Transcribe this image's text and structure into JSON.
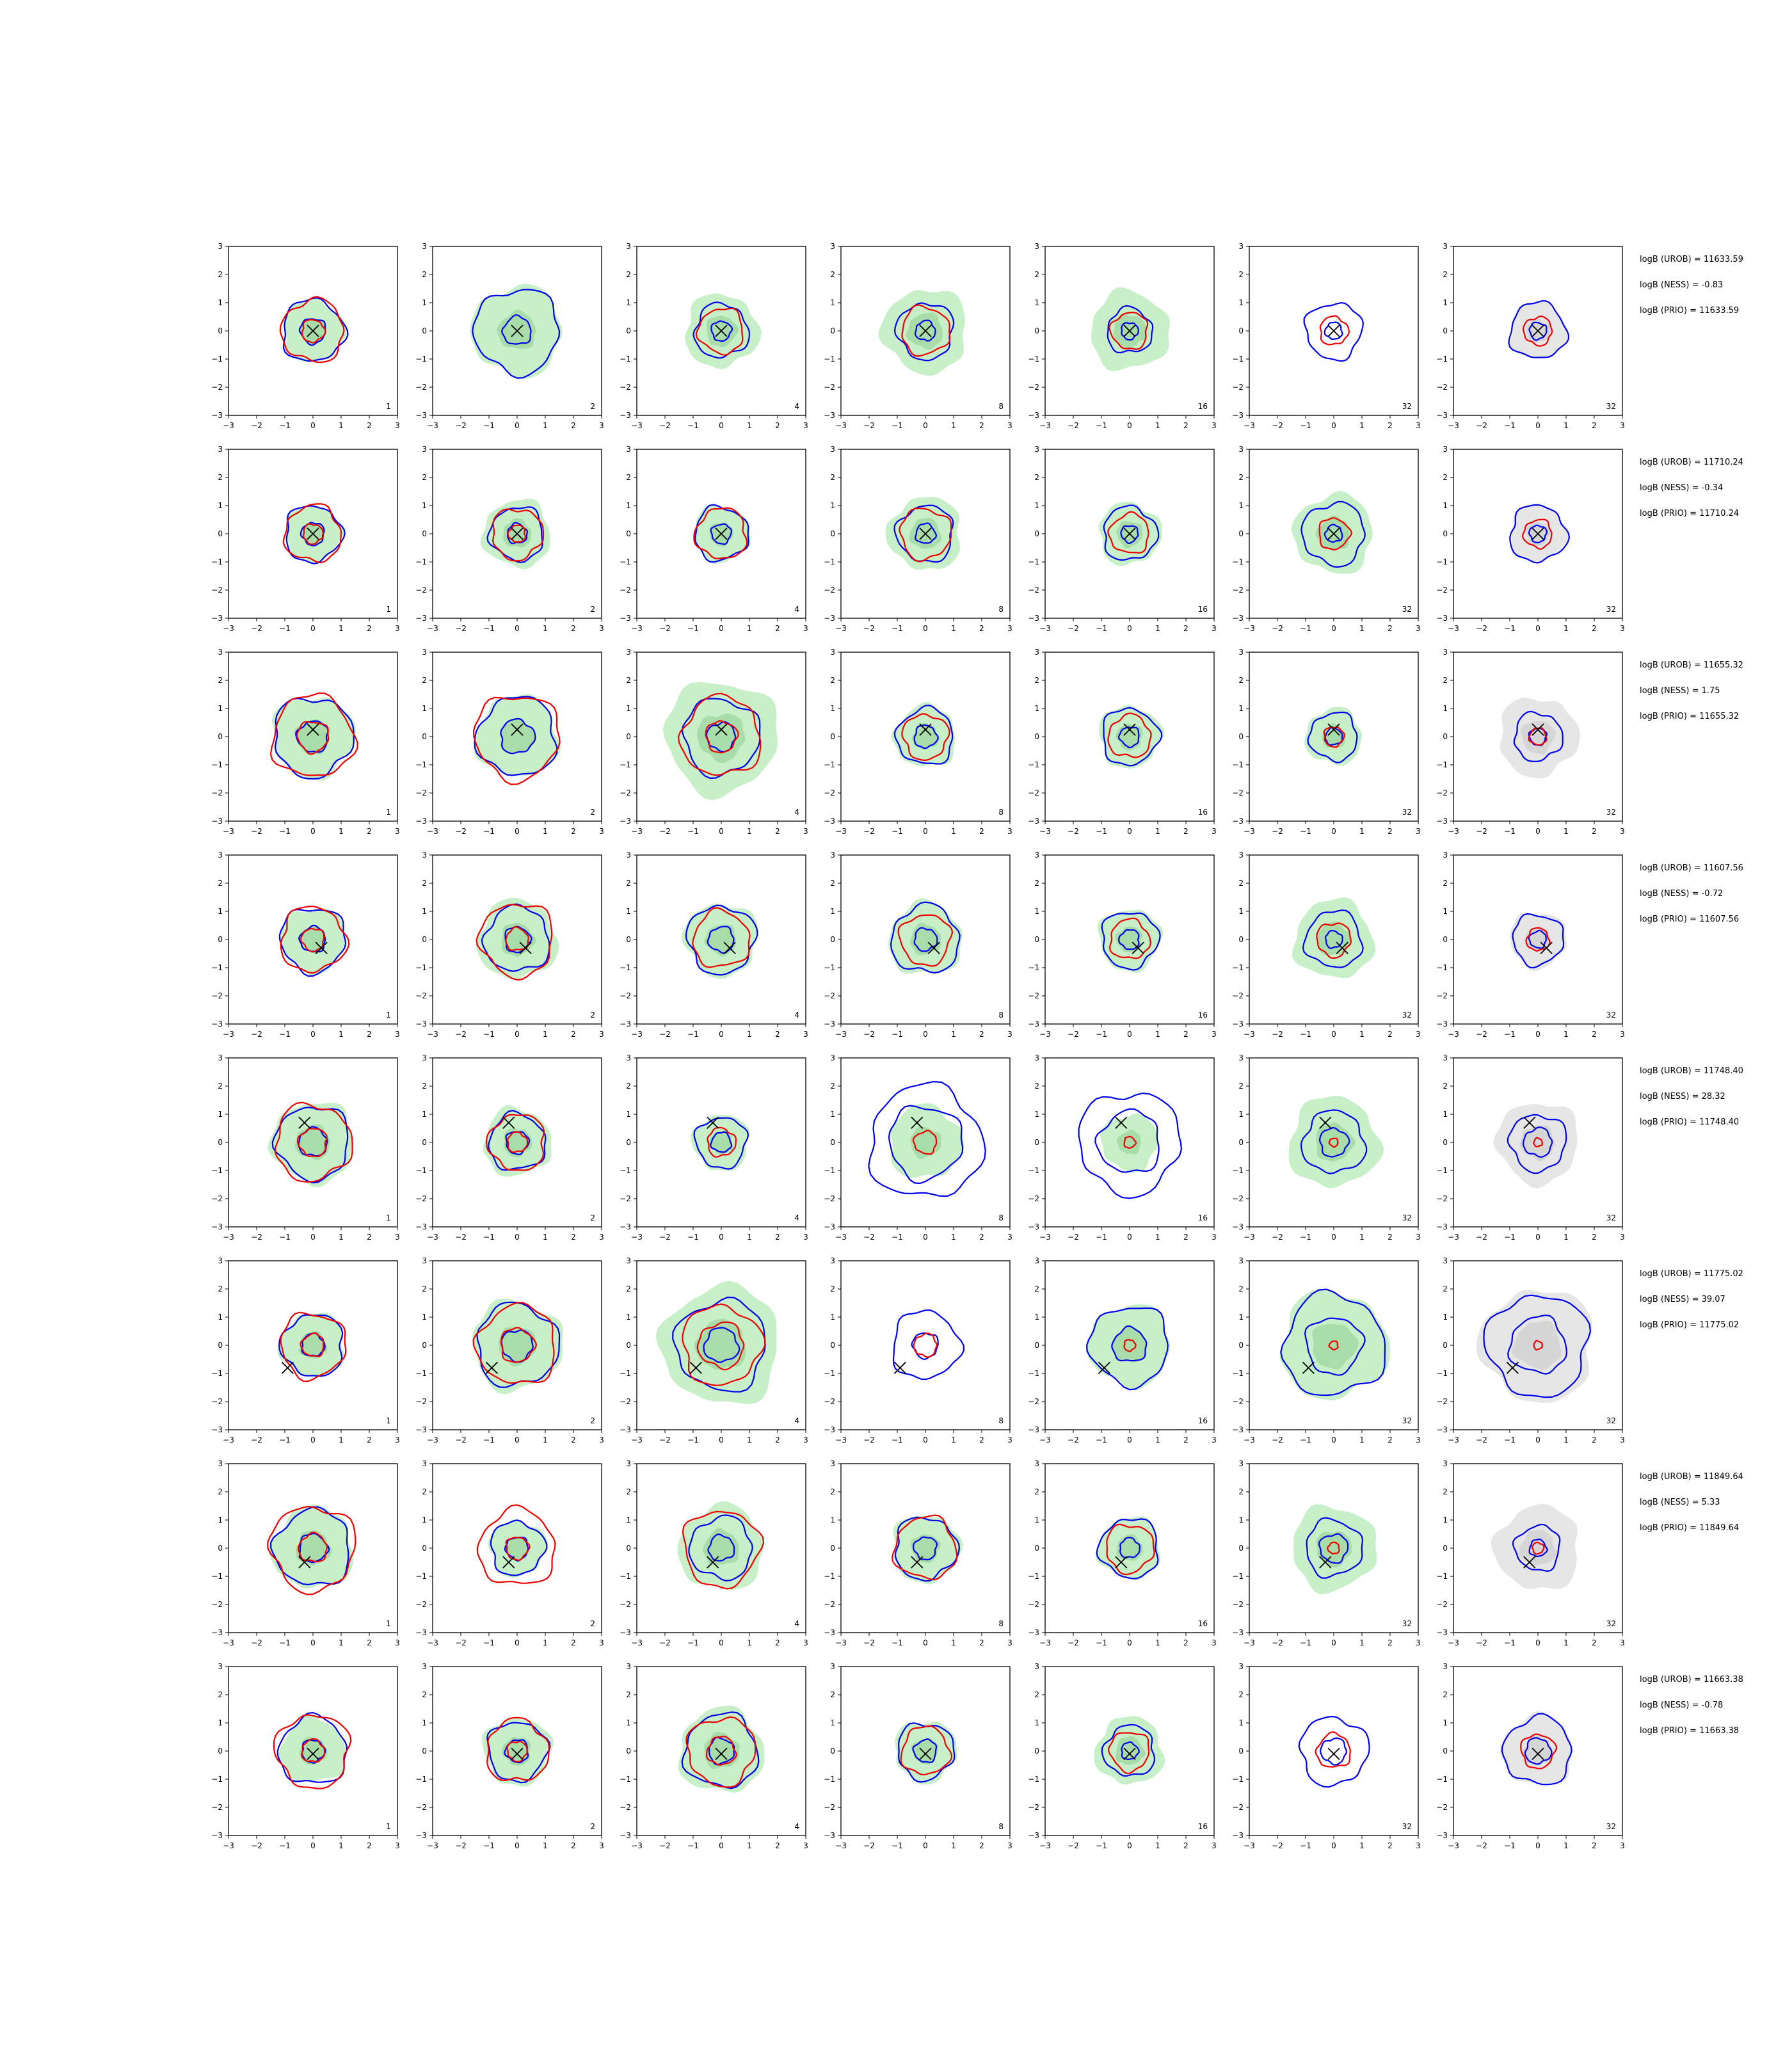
{
  "figure": {
    "background": "#ffffff",
    "colors": {
      "inner_fill": "#c8f0c8",
      "inner_fill_dark": "#a8dca8",
      "prior_fill": "#e6e6e6",
      "prior_fill_dark": "#d6d6d6",
      "contour_blue": "#0000ee",
      "contour_red": "#ee0000",
      "marker": "#000000"
    }
  },
  "chart_data": {
    "type": "contour-grid",
    "xlim": [
      -3,
      3
    ],
    "ylim": [
      -3,
      3
    ],
    "xticks": [
      "−3",
      "−2",
      "−1",
      "0",
      "1",
      "2",
      "3"
    ],
    "yticks": [
      "3",
      "2",
      "1",
      "0",
      "−1",
      "−2",
      "−3"
    ],
    "panel_labels": [
      "1",
      "2",
      "4",
      "8",
      "16",
      "32",
      "32"
    ],
    "grid": false,
    "legend": "none",
    "rows": [
      {
        "truth": [
          0.0,
          0.0
        ],
        "annotations": [
          "logB (UROB) = 11633.59",
          "logB (NESS) = -0.83",
          "logB (PRIO) = 11633.59"
        ],
        "panels": [
          {
            "green": 1.1,
            "blue": [
              1.1,
              0.45
            ],
            "red": [
              1.1,
              0.4
            ]
          },
          {
            "green": 1.6,
            "blue": [
              1.5,
              0.5
            ],
            "red": []
          },
          {
            "green": 1.3,
            "blue": [
              0.95,
              0.35
            ],
            "red": [
              0.8
            ]
          },
          {
            "green": 1.5,
            "blue": [
              1.0,
              0.35
            ],
            "red": [
              0.85
            ]
          },
          {
            "green": 1.4,
            "blue": [
              0.8,
              0.3
            ],
            "red": [
              0.65
            ]
          },
          {
            "green": 0.0,
            "blue": [
              1.0,
              0.3
            ],
            "red": [
              0.5
            ]
          },
          {
            "gray": 1.0,
            "blue": [
              1.0,
              0.3
            ],
            "red": [
              0.5
            ]
          }
        ]
      },
      {
        "truth": [
          0.0,
          0.0
        ],
        "annotations": [
          "logB (UROB) = 11710.24",
          "logB (NESS) = -0.34",
          "logB (PRIO) = 11710.24"
        ],
        "panels": [
          {
            "green": 1.0,
            "blue": [
              1.0,
              0.4
            ],
            "red": [
              1.0,
              0.35
            ]
          },
          {
            "green": 1.2,
            "blue": [
              0.95,
              0.35
            ],
            "red": [
              0.9,
              0.3
            ]
          },
          {
            "green": 1.0,
            "blue": [
              0.95,
              0.35
            ],
            "red": [
              0.9
            ]
          },
          {
            "green": 1.3,
            "blue": [
              1.0,
              0.35
            ],
            "red": [
              0.9
            ]
          },
          {
            "green": 1.1,
            "blue": [
              0.95,
              0.3
            ],
            "red": [
              0.7
            ]
          },
          {
            "green": 1.4,
            "blue": [
              1.1,
              0.3
            ],
            "red": [
              0.55
            ]
          },
          {
            "gray": 1.0,
            "blue": [
              1.0,
              0.3
            ],
            "red": [
              0.5
            ]
          }
        ]
      },
      {
        "truth": [
          0.0,
          0.25
        ],
        "annotations": [
          "logB (UROB) = 11655.32",
          "logB (NESS) = 1.75",
          "logB (PRIO) = 11655.32"
        ],
        "panels": [
          {
            "green": 1.45,
            "blue": [
              1.4,
              0.55
            ],
            "red": [
              1.45,
              0.55
            ]
          },
          {
            "green": 1.45,
            "blue": [
              1.4,
              0.6
            ],
            "red": [
              1.5
            ]
          },
          {
            "green": 2.0,
            "blue": [
              1.35,
              0.5
            ],
            "red": [
              1.4,
              0.55
            ]
          },
          {
            "green": 1.1,
            "blue": [
              1.0,
              0.4
            ],
            "red": [
              0.8
            ]
          },
          {
            "green": 1.1,
            "blue": [
              1.0,
              0.35
            ],
            "red": [
              0.75
            ]
          },
          {
            "green": 1.0,
            "blue": [
              0.85,
              0.3
            ],
            "red": [
              0.35
            ]
          },
          {
            "gray": 1.4,
            "blue": [
              0.85,
              0.3
            ],
            "red": [
              0.3
            ]
          }
        ]
      },
      {
        "truth": [
          0.3,
          -0.3
        ],
        "annotations": [
          "logB (UROB) = 11607.56",
          "logB (NESS) = -0.72",
          "logB (PRIO) = 11607.56"
        ],
        "panels": [
          {
            "green": 1.15,
            "blue": [
              1.15,
              0.45
            ],
            "red": [
              1.15,
              0.4
            ]
          },
          {
            "green": 1.4,
            "blue": [
              1.15,
              0.45
            ],
            "red": [
              1.3,
              0.4
            ]
          },
          {
            "green": 1.3,
            "blue": [
              1.2,
              0.45
            ],
            "red": [
              1.0
            ]
          },
          {
            "green": 1.3,
            "blue": [
              1.2,
              0.4
            ],
            "red": [
              0.9
            ]
          },
          {
            "green": 1.1,
            "blue": [
              1.0,
              0.35
            ],
            "red": [
              0.7
            ]
          },
          {
            "green": 1.4,
            "blue": [
              1.0,
              0.3
            ],
            "red": [
              0.6
            ]
          },
          {
            "gray": 1.0,
            "blue": [
              0.9,
              0.3
            ],
            "red": [
              0.4
            ]
          }
        ]
      },
      {
        "truth": [
          -0.3,
          0.7
        ],
        "annotations": [
          "logB (UROB) = 11748.40",
          "logB (NESS) = 28.32",
          "logB (PRIO) = 11748.40"
        ],
        "panels": [
          {
            "green": 1.45,
            "blue": [
              1.3,
              0.5
            ],
            "red": [
              1.35,
              0.5
            ]
          },
          {
            "green": 1.2,
            "blue": [
              1.0,
              0.4
            ],
            "red": [
              1.0,
              0.35
            ]
          },
          {
            "green": 1.0,
            "blue": [
              0.9,
              0.35
            ],
            "red": [
              0.5
            ]
          },
          {
            "green": 1.3,
            "blue": [
              2.0,
              1.3
            ],
            "red": [
              0.4
            ]
          },
          {
            "green": 1.0,
            "blue": [
              1.8,
              1.1
            ],
            "red": [
              0.2
            ]
          },
          {
            "green": 1.6,
            "blue": [
              1.1,
              0.5
            ],
            "red": [
              0.15
            ]
          },
          {
            "gray": 1.45,
            "blue": [
              1.0,
              0.5
            ],
            "red": [
              0.15
            ]
          }
        ]
      },
      {
        "truth": [
          -0.9,
          -0.8
        ],
        "annotations": [
          "logB (UROB) = 11775.02",
          "logB (NESS) = 39.07",
          "logB (PRIO) = 11775.02"
        ],
        "panels": [
          {
            "green": 1.15,
            "blue": [
              1.1,
              0.4
            ],
            "red": [
              1.15,
              0.4
            ]
          },
          {
            "green": 1.6,
            "blue": [
              1.45,
              0.55
            ],
            "red": [
              1.4,
              0.6
            ]
          },
          {
            "green": 2.1,
            "blue": [
              1.6,
              0.6
            ],
            "red": [
              1.4,
              0.8
            ]
          },
          {
            "green": 0.0,
            "blue": [
              1.2,
              0.45
            ],
            "red": [
              0.4
            ]
          },
          {
            "green": 1.45,
            "blue": [
              1.4,
              0.6
            ],
            "red": [
              0.2
            ]
          },
          {
            "green": 1.9,
            "blue": [
              1.8,
              1.0
            ],
            "red": [
              0.15
            ]
          },
          {
            "gray": 2.0,
            "blue": [
              1.8,
              1.0
            ],
            "red": [
              0.15
            ]
          }
        ]
      },
      {
        "truth": [
          -0.3,
          -0.5
        ],
        "annotations": [
          "logB (UROB) = 11849.64",
          "logB (NESS) = 5.33",
          "logB (PRIO) = 11849.64"
        ],
        "panels": [
          {
            "green": 1.45,
            "blue": [
              1.35,
              0.5
            ],
            "red": [
              1.5,
              0.5
            ]
          },
          {
            "green": 1.0,
            "blue": [
              0.95,
              0.4
            ],
            "red": [
              1.35,
              0.4
            ]
          },
          {
            "green": 1.5,
            "blue": [
              1.1,
              0.45
            ],
            "red": [
              1.35
            ]
          },
          {
            "green": 1.2,
            "blue": [
              1.1,
              0.4
            ],
            "red": [
              1.1
            ]
          },
          {
            "green": 1.1,
            "blue": [
              1.05,
              0.35
            ],
            "red": [
              0.85
            ]
          },
          {
            "green": 1.5,
            "blue": [
              1.0,
              0.5
            ],
            "red": [
              0.2
            ]
          },
          {
            "gray": 1.5,
            "blue": [
              0.8,
              0.3
            ],
            "red": [
              0.2
            ]
          }
        ]
      },
      {
        "truth": [
          0.0,
          -0.1
        ],
        "annotations": [
          "logB (UROB) = 11663.38",
          "logB (NESS) = -0.78",
          "logB (PRIO) = 11663.38"
        ],
        "panels": [
          {
            "green": 1.15,
            "blue": [
              1.2,
              0.4
            ],
            "red": [
              1.3,
              0.4
            ]
          },
          {
            "green": 1.2,
            "blue": [
              1.05,
              0.4
            ],
            "red": [
              1.1,
              0.35
            ]
          },
          {
            "green": 1.5,
            "blue": [
              1.3,
              0.45
            ],
            "red": [
              1.2,
              0.5
            ]
          },
          {
            "green": 1.1,
            "blue": [
              1.0,
              0.4
            ],
            "red": [
              0.85
            ]
          },
          {
            "green": 1.2,
            "blue": [
              0.9,
              0.3
            ],
            "red": [
              0.7
            ]
          },
          {
            "green": 0.0,
            "blue": [
              1.2,
              0.45
            ],
            "red": [
              0.6
            ]
          },
          {
            "gray": 1.25,
            "blue": [
              1.2,
              0.45
            ],
            "red": [
              0.6
            ]
          }
        ]
      }
    ]
  }
}
